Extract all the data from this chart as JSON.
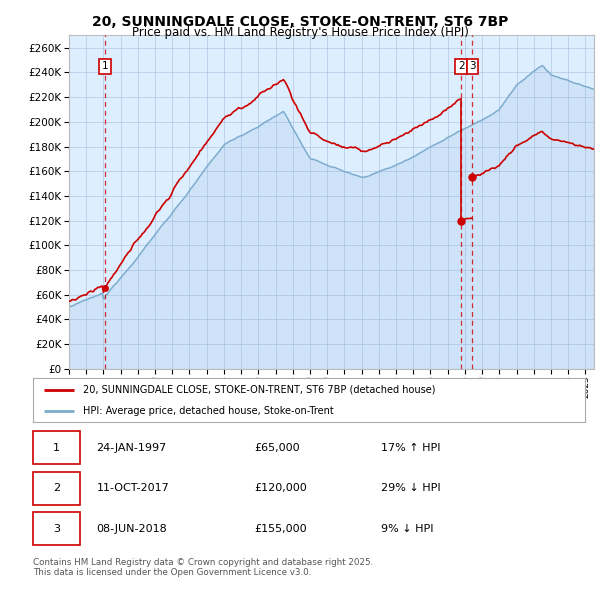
{
  "title": "20, SUNNINGDALE CLOSE, STOKE-ON-TRENT, ST6 7BP",
  "subtitle": "Price paid vs. HM Land Registry's House Price Index (HPI)",
  "ylim": [
    0,
    270000
  ],
  "yticks": [
    0,
    20000,
    40000,
    60000,
    80000,
    100000,
    120000,
    140000,
    160000,
    180000,
    200000,
    220000,
    240000,
    260000
  ],
  "sale1_year": 1997.07,
  "sale1_price": 65000,
  "sale2_year": 2017.78,
  "sale2_price": 120000,
  "sale3_year": 2018.44,
  "sale3_price": 155000,
  "legend_line1": "20, SUNNINGDALE CLOSE, STOKE-ON-TRENT, ST6 7BP (detached house)",
  "legend_line2": "HPI: Average price, detached house, Stoke-on-Trent",
  "table_rows": [
    [
      "1",
      "24-JAN-1997",
      "£65,000",
      "17% ↑ HPI"
    ],
    [
      "2",
      "11-OCT-2017",
      "£120,000",
      "29% ↓ HPI"
    ],
    [
      "3",
      "08-JUN-2018",
      "£155,000",
      "9% ↓ HPI"
    ]
  ],
  "footnote": "Contains HM Land Registry data © Crown copyright and database right 2025.\nThis data is licensed under the Open Government Licence v3.0.",
  "plot_color_red": "#cc0000",
  "plot_color_blue": "#7aaacc",
  "grid_color": "#cc0000",
  "bg_color": "#ddeeff",
  "fig_bg": "#ffffff"
}
